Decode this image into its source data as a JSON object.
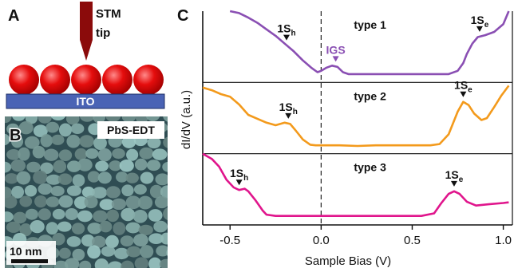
{
  "panelA": {
    "label": "A",
    "tip_line1": "STM",
    "tip_line2": "tip",
    "substrate": "ITO",
    "sphere_count": 5,
    "colors": {
      "tip": "#8b0b0b",
      "sphere": "#e50d0d",
      "substrate": "#4a63b5"
    }
  },
  "panelB": {
    "label": "B",
    "title": "PbS-EDT",
    "scalebar": "10 nm"
  },
  "panelC": {
    "label": "C",
    "ylabel": "dI/dV (a.u.)",
    "xlabel": "Sample Bias (V)",
    "tick_labels": [
      "-0.5",
      "0.0",
      "0.5",
      "1.0"
    ]
  },
  "chart_data": {
    "type": "line",
    "xlabel": "Sample Bias (V)",
    "ylabel": "dI/dV (a.u.)",
    "xlim": [
      -0.65,
      1.05
    ],
    "xticks": [
      -0.5,
      0.0,
      0.5,
      1.0
    ],
    "vline": 0.0,
    "series": [
      {
        "name": "type 1",
        "color": "#8a4fb3",
        "x": [
          -0.5,
          -0.45,
          -0.4,
          -0.35,
          -0.3,
          -0.25,
          -0.2,
          -0.15,
          -0.1,
          -0.05,
          -0.02,
          0.0,
          0.03,
          0.06,
          0.09,
          0.12,
          0.15,
          0.2,
          0.3,
          0.4,
          0.5,
          0.6,
          0.7,
          0.75,
          0.78,
          0.8,
          0.83,
          0.86,
          0.9,
          0.95,
          1.0,
          1.03
        ],
        "y": [
          1.0,
          0.97,
          0.9,
          0.82,
          0.72,
          0.62,
          0.5,
          0.38,
          0.24,
          0.12,
          0.06,
          0.08,
          0.13,
          0.16,
          0.14,
          0.06,
          0.03,
          0.03,
          0.03,
          0.03,
          0.03,
          0.03,
          0.03,
          0.08,
          0.2,
          0.34,
          0.5,
          0.6,
          0.63,
          0.68,
          0.8,
          1.0
        ],
        "labels": [
          {
            "text": "1S",
            "sub": "h",
            "x": -0.19,
            "kind": "peak"
          },
          {
            "text": "IGS",
            "x": 0.08,
            "kind": "igs"
          },
          {
            "text": "1S",
            "sub": "e",
            "x": 0.87,
            "kind": "peak"
          }
        ]
      },
      {
        "name": "type 2",
        "color": "#f39a1c",
        "x": [
          -0.65,
          -0.6,
          -0.55,
          -0.5,
          -0.45,
          -0.4,
          -0.35,
          -0.3,
          -0.25,
          -0.2,
          -0.17,
          -0.14,
          -0.1,
          -0.06,
          -0.03,
          0.0,
          0.1,
          0.2,
          0.3,
          0.4,
          0.5,
          0.6,
          0.65,
          0.7,
          0.75,
          0.78,
          0.81,
          0.84,
          0.88,
          0.91,
          0.95,
          0.99,
          1.03
        ],
        "y": [
          0.92,
          0.88,
          0.82,
          0.78,
          0.66,
          0.5,
          0.44,
          0.38,
          0.34,
          0.38,
          0.36,
          0.26,
          0.12,
          0.04,
          0.03,
          0.03,
          0.03,
          0.02,
          0.03,
          0.03,
          0.03,
          0.03,
          0.05,
          0.2,
          0.55,
          0.7,
          0.65,
          0.52,
          0.42,
          0.45,
          0.62,
          0.8,
          0.95
        ],
        "labels": [
          {
            "text": "1S",
            "sub": "h",
            "x": -0.18,
            "kind": "peak"
          },
          {
            "text": "1S",
            "sub": "e",
            "x": 0.78,
            "kind": "peak"
          }
        ]
      },
      {
        "name": "type 3",
        "color": "#e0158c",
        "x": [
          -0.65,
          -0.6,
          -0.56,
          -0.52,
          -0.48,
          -0.45,
          -0.42,
          -0.4,
          -0.36,
          -0.32,
          -0.3,
          -0.25,
          -0.1,
          0.0,
          0.2,
          0.4,
          0.55,
          0.62,
          0.66,
          0.7,
          0.73,
          0.76,
          0.8,
          0.85,
          0.92,
          1.0,
          1.03
        ],
        "y": [
          1.0,
          0.92,
          0.8,
          0.6,
          0.48,
          0.44,
          0.46,
          0.42,
          0.28,
          0.12,
          0.06,
          0.04,
          0.04,
          0.04,
          0.04,
          0.04,
          0.04,
          0.08,
          0.24,
          0.38,
          0.42,
          0.38,
          0.26,
          0.2,
          0.22,
          0.24,
          0.25
        ],
        "labels": [
          {
            "text": "1S",
            "sub": "h",
            "x": -0.45,
            "kind": "peak"
          },
          {
            "text": "1S",
            "sub": "e",
            "x": 0.73,
            "kind": "peak"
          }
        ]
      }
    ]
  }
}
